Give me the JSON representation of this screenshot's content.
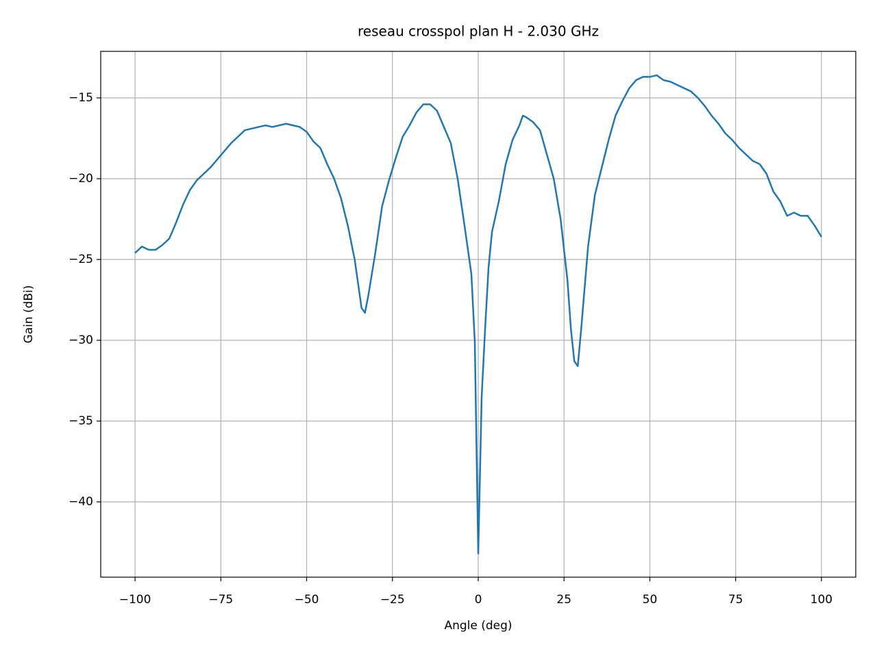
{
  "chart_data": {
    "type": "line",
    "title": "reseau crosspol plan H - 2.030 GHz",
    "x_label": "Angle (deg)",
    "y_label": "Gain (dBi)",
    "color": "#1f77b4",
    "grid": true,
    "xlim": [
      -110,
      110
    ],
    "ylim": [
      -44.66,
      -12.12
    ],
    "xticks": [
      {
        "value": -100,
        "label": "−100"
      },
      {
        "value": -75,
        "label": "−75"
      },
      {
        "value": -50,
        "label": "−50"
      },
      {
        "value": -25,
        "label": "−25"
      },
      0,
      25,
      50,
      75,
      100
    ],
    "yticks": [
      {
        "value": -40,
        "label": "−40"
      },
      {
        "value": -35,
        "label": "−35"
      },
      {
        "value": -30,
        "label": "−30"
      },
      {
        "value": -25,
        "label": "−25"
      },
      {
        "value": -20,
        "label": "−20"
      },
      {
        "value": -15,
        "label": "−15"
      }
    ],
    "x": [
      -100,
      -98,
      -96,
      -94,
      -92,
      -90,
      -88,
      -86,
      -84,
      -82,
      -80,
      -78,
      -76,
      -74,
      -72,
      -70,
      -68,
      -66,
      -64,
      -62,
      -60,
      -58,
      -56,
      -54,
      -52,
      -50,
      -48,
      -46,
      -44,
      -42,
      -40,
      -38,
      -36,
      -34,
      -33,
      -32,
      -30,
      -28,
      -26,
      -24,
      -22,
      -20,
      -18,
      -16,
      -14,
      -12,
      -10,
      -8,
      -6,
      -4,
      -2,
      -1,
      0,
      1,
      2,
      3,
      4,
      6,
      8,
      10,
      12,
      13,
      14,
      16,
      18,
      20,
      22,
      24,
      26,
      27,
      28,
      29,
      30,
      32,
      34,
      36,
      38,
      40,
      42,
      44,
      46,
      48,
      50,
      52,
      54,
      56,
      58,
      60,
      62,
      64,
      66,
      68,
      70,
      72,
      74,
      76,
      78,
      80,
      82,
      84,
      86,
      88,
      90,
      92,
      94,
      96,
      98,
      100
    ],
    "values": [
      -24.6,
      -24.2,
      -24.4,
      -24.4,
      -24.1,
      -23.7,
      -22.7,
      -21.6,
      -20.7,
      -20.1,
      -19.7,
      -19.3,
      -18.8,
      -18.3,
      -17.8,
      -17.4,
      -17.0,
      -16.9,
      -16.8,
      -16.7,
      -16.8,
      -16.7,
      -16.6,
      -16.7,
      -16.8,
      -17.1,
      -17.7,
      -18.1,
      -19.1,
      -20.0,
      -21.2,
      -22.9,
      -25.0,
      -28.0,
      -28.3,
      -27.2,
      -24.6,
      -21.7,
      -20.1,
      -18.7,
      -17.4,
      -16.7,
      -15.9,
      -15.4,
      -15.4,
      -15.8,
      -16.8,
      -17.8,
      -20.0,
      -22.9,
      -25.9,
      -30.1,
      -43.2,
      -33.5,
      -29.3,
      -25.5,
      -23.3,
      -21.4,
      -19.1,
      -17.6,
      -16.7,
      -16.1,
      -16.2,
      -16.5,
      -17.0,
      -18.5,
      -20.0,
      -22.5,
      -26.3,
      -29.3,
      -31.3,
      -31.6,
      -29.3,
      -24.2,
      -21.0,
      -19.3,
      -17.6,
      -16.1,
      -15.2,
      -14.4,
      -13.9,
      -13.7,
      -13.7,
      -13.6,
      -13.9,
      -14.0,
      -14.2,
      -14.4,
      -14.6,
      -15.0,
      -15.5,
      -16.1,
      -16.6,
      -17.2,
      -17.6,
      -18.1,
      -18.5,
      -18.9,
      -19.1,
      -19.7,
      -20.8,
      -21.4,
      -22.3,
      -22.1,
      -22.3,
      -22.3,
      -22.9,
      -23.6
    ]
  }
}
